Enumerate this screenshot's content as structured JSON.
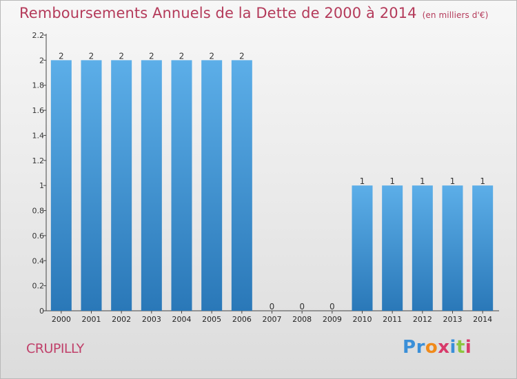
{
  "header": {
    "title": "Remboursements Annuels de la Dette de 2000 à 2014",
    "unit": "(en milliers d'€)"
  },
  "footer": {
    "city": "CRUPILLY",
    "logo_text": "Proxiti",
    "logo_letters": [
      {
        "ch": "P",
        "color": "#3a8fd8"
      },
      {
        "ch": "r",
        "color": "#3a8fd8"
      },
      {
        "ch": "o",
        "color": "#f08a1a"
      },
      {
        "ch": "x",
        "color": "#d83a6a"
      },
      {
        "ch": "i",
        "color": "#3a8fd8"
      },
      {
        "ch": "t",
        "color": "#8cc63f"
      },
      {
        "ch": "i",
        "color": "#d83a6a"
      }
    ]
  },
  "chart_data": {
    "type": "bar",
    "title": "Remboursements Annuels de la Dette de 2000 à 2014",
    "subtitle": "(en milliers d'€)",
    "xlabel": "",
    "ylabel": "",
    "categories": [
      "2000",
      "2001",
      "2002",
      "2003",
      "2004",
      "2005",
      "2006",
      "2007",
      "2008",
      "2009",
      "2010",
      "2011",
      "2012",
      "2013",
      "2014"
    ],
    "values": [
      2,
      2,
      2,
      2,
      2,
      2,
      2,
      0,
      0,
      0,
      1,
      1,
      1,
      1,
      1
    ],
    "data_labels": [
      "2",
      "2",
      "2",
      "2",
      "2",
      "2",
      "2",
      "0",
      "0",
      "0",
      "1",
      "1",
      "1",
      "1",
      "1"
    ],
    "ylim": [
      0,
      2.2
    ],
    "yticks": [
      0,
      0.2,
      0.4,
      0.6,
      0.8,
      1,
      1.2,
      1.4,
      1.6,
      1.8,
      2,
      2.2
    ],
    "ytick_labels": [
      "0",
      "0.2",
      "0.4",
      "0.6",
      "0.8",
      "1",
      "1.2",
      "1.4",
      "1.6",
      "1.8",
      "2",
      "2.2"
    ],
    "grid": false,
    "legend": "none",
    "colors": {
      "bar_light": "#5caee8",
      "bar_dark": "#2a78b8",
      "title": "#b43a5a"
    }
  }
}
